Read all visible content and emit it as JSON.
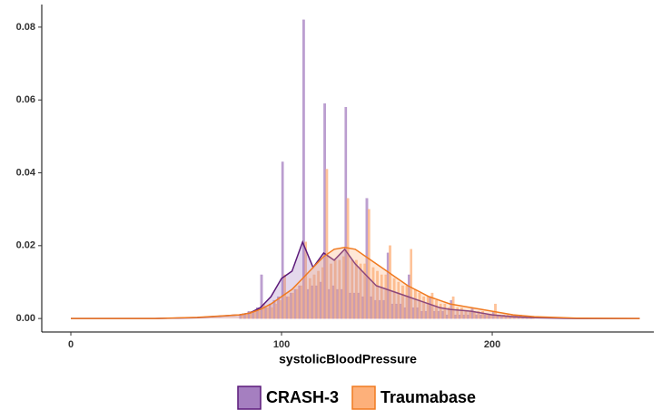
{
  "chart_data": {
    "type": "histogram",
    "xlabel": "systolicBloodPressure",
    "xlim": [
      -13.8,
      276.7
    ],
    "xticks": [
      0,
      100,
      200
    ],
    "ylim": [
      -0.0037,
      0.0862
    ],
    "yticks": [
      {
        "value": 0,
        "label": "0.00"
      },
      0.02,
      0.04,
      0.06,
      0.08
    ],
    "legend": "bottom",
    "bins": [
      80,
      82,
      84,
      86,
      88,
      90,
      92,
      94,
      96,
      98,
      100,
      102,
      104,
      106,
      108,
      110,
      112,
      114,
      116,
      118,
      120,
      122,
      124,
      126,
      128,
      130,
      132,
      134,
      136,
      138,
      140,
      142,
      144,
      146,
      148,
      150,
      152,
      154,
      156,
      158,
      160,
      162,
      164,
      166,
      168,
      170,
      172,
      174,
      176,
      178,
      180,
      182,
      184,
      186,
      188,
      190,
      192,
      194,
      196,
      198,
      200,
      202,
      204,
      206,
      208,
      210,
      212,
      214,
      216,
      218,
      220
    ],
    "density_x": [
      0,
      20,
      40,
      60,
      80,
      85,
      90,
      95,
      100,
      105,
      110,
      115,
      120,
      125,
      130,
      135,
      140,
      145,
      150,
      155,
      160,
      165,
      170,
      175,
      180,
      190,
      200,
      210,
      220,
      240,
      270
    ],
    "series": [
      {
        "name": "CRASH-3",
        "color": "#5c1a7a",
        "fill": "#a57fc0",
        "values": [
          0.001,
          0.001,
          0.002,
          0.002,
          0.003,
          0.012,
          0.003,
          0.004,
          0.005,
          0.006,
          0.043,
          0.006,
          0.007,
          0.008,
          0.009,
          0.082,
          0.008,
          0.009,
          0.009,
          0.01,
          0.059,
          0.008,
          0.009,
          0.008,
          0.008,
          0.058,
          0.007,
          0.007,
          0.007,
          0.006,
          0.033,
          0.006,
          0.005,
          0.005,
          0.005,
          0.018,
          0.004,
          0.004,
          0.004,
          0.003,
          0.012,
          0.003,
          0.003,
          0.002,
          0.002,
          0.006,
          0.002,
          0.002,
          0.002,
          0.001,
          0.005,
          0.001,
          0.001,
          0.001,
          0.001,
          0.003,
          0.001,
          0.001,
          0.001,
          0.001,
          0.002,
          0.001,
          0.0005,
          0.0005,
          0.0005,
          0.001,
          0.0003,
          0.0003,
          0.0002,
          0.0002
        ],
        "density": [
          0,
          0,
          0,
          0.0002,
          0.001,
          0.0015,
          0.003,
          0.006,
          0.011,
          0.013,
          0.021,
          0.014,
          0.018,
          0.016,
          0.019,
          0.015,
          0.012,
          0.009,
          0.008,
          0.007,
          0.006,
          0.005,
          0.004,
          0.003,
          0.0025,
          0.002,
          0.001,
          0.0005,
          0.0002,
          0,
          0
        ]
      },
      {
        "name": "Traumabase",
        "color": "#f07a20",
        "fill": "#fdb07a",
        "values": [
          0.001,
          0.001,
          0.002,
          0.002,
          0.002,
          0.004,
          0.003,
          0.003,
          0.004,
          0.005,
          0.012,
          0.006,
          0.007,
          0.008,
          0.009,
          0.021,
          0.011,
          0.012,
          0.013,
          0.014,
          0.041,
          0.015,
          0.016,
          0.016,
          0.017,
          0.033,
          0.016,
          0.016,
          0.015,
          0.015,
          0.03,
          0.014,
          0.013,
          0.012,
          0.012,
          0.02,
          0.011,
          0.01,
          0.009,
          0.009,
          0.019,
          0.008,
          0.007,
          0.006,
          0.006,
          0.007,
          0.005,
          0.004,
          0.004,
          0.003,
          0.006,
          0.003,
          0.003,
          0.002,
          0.002,
          0.002,
          0.002,
          0.002,
          0.001,
          0.001,
          0.004,
          0.001,
          0.001,
          0.001,
          0.001,
          0.001,
          0.001,
          0.0005,
          0.0005,
          0.0005
        ],
        "density": [
          0,
          0,
          0,
          0.0003,
          0.001,
          0.0015,
          0.0025,
          0.004,
          0.006,
          0.008,
          0.011,
          0.014,
          0.017,
          0.019,
          0.0195,
          0.019,
          0.017,
          0.015,
          0.013,
          0.011,
          0.009,
          0.0075,
          0.006,
          0.005,
          0.004,
          0.003,
          0.002,
          0.001,
          0.0005,
          0.0001,
          0
        ]
      }
    ]
  }
}
